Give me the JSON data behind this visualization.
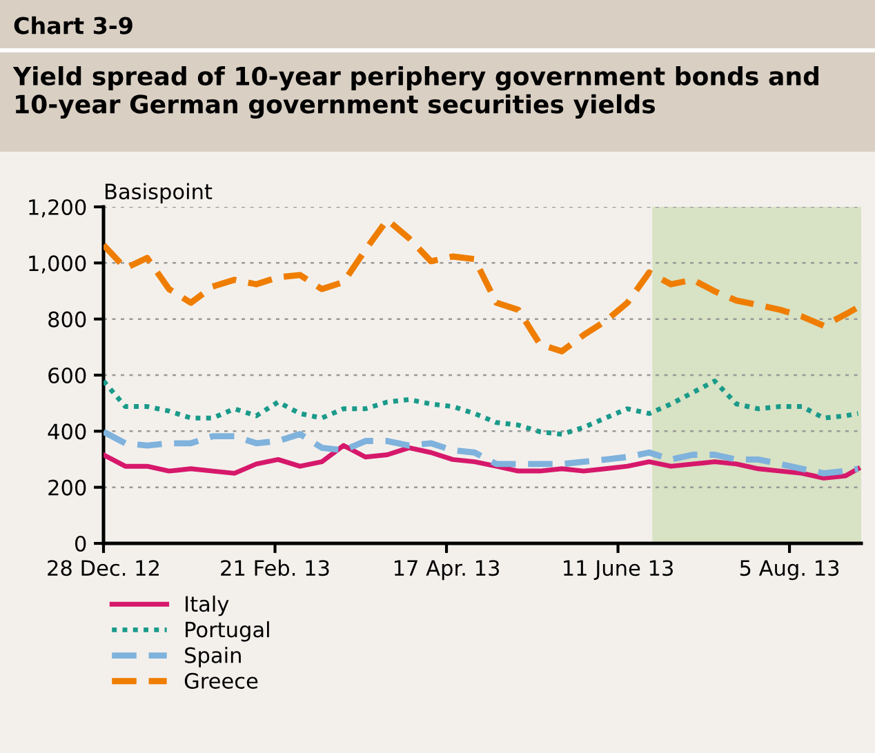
{
  "chart_data": {
    "type": "line",
    "title": "Yield spread of 10-year periphery government bonds and 10-year German government securities yields",
    "ylabel": "Basispoint",
    "annotations": [
      "Chart 3-9"
    ],
    "x": [
      "2012-12-28",
      "2013-01-04",
      "2013-01-11",
      "2013-01-18",
      "2013-01-25",
      "2013-02-01",
      "2013-02-08",
      "2013-02-15",
      "2013-02-22",
      "2013-03-01",
      "2013-03-08",
      "2013-03-15",
      "2013-03-22",
      "2013-03-29",
      "2013-04-05",
      "2013-04-12",
      "2013-04-19",
      "2013-04-26",
      "2013-05-03",
      "2013-05-10",
      "2013-05-17",
      "2013-05-24",
      "2013-05-31",
      "2013-06-07",
      "2013-06-14",
      "2013-06-21",
      "2013-06-28",
      "2013-07-05",
      "2013-07-12",
      "2013-07-19",
      "2013-07-26",
      "2013-08-02",
      "2013-08-09",
      "2013-08-16",
      "2013-08-23",
      "2013-08-27"
    ],
    "series": [
      {
        "name": "Italy",
        "color": "#d6186b",
        "line_style": "solid",
        "values": [
          316,
          275,
          275,
          258,
          266,
          258,
          250,
          283,
          299,
          275,
          291,
          349,
          308,
          316,
          341,
          324,
          299,
          291,
          275,
          258,
          258,
          266,
          258,
          266,
          275,
          291,
          275,
          283,
          291,
          283,
          266,
          258,
          250,
          233,
          241,
          266
        ]
      },
      {
        "name": "Portugal",
        "color": "#1a9a8a",
        "line_style": "dotted",
        "values": [
          579,
          488,
          488,
          472,
          447,
          447,
          480,
          455,
          504,
          463,
          447,
          480,
          480,
          504,
          513,
          497,
          488,
          463,
          431,
          422,
          398,
          389,
          414,
          447,
          480,
          463,
          497,
          538,
          579,
          497,
          480,
          488,
          488,
          447,
          455,
          463
        ]
      },
      {
        "name": "Spain",
        "color": "#7fb2dc",
        "line_style": "dashed",
        "values": [
          398,
          357,
          349,
          357,
          357,
          382,
          382,
          357,
          365,
          390,
          341,
          332,
          365,
          365,
          349,
          357,
          332,
          324,
          283,
          283,
          283,
          283,
          291,
          299,
          308,
          324,
          299,
          316,
          316,
          299,
          299,
          283,
          266,
          250,
          258,
          266
        ]
      },
      {
        "name": "Greece",
        "color": "#ef7d00",
        "line_style": "dashed",
        "values": [
          1064,
          981,
          1018,
          907,
          858,
          916,
          940,
          924,
          949,
          957,
          907,
          932,
          1047,
          1154,
          1088,
          1006,
          1023,
          1014,
          858,
          833,
          710,
          685,
          743,
          793,
          858,
          966,
          924,
          940,
          899,
          866,
          850,
          833,
          809,
          776,
          817,
          842
        ]
      }
    ],
    "xlim": [
      "2012-12-28",
      "2013-08-28"
    ],
    "xticks": [
      {
        "value": "2012-12-28",
        "label": "28 Dec. 12"
      },
      {
        "value": "2013-02-21",
        "label": "21 Feb. 13"
      },
      {
        "value": "2013-04-17",
        "label": "17 Apr. 13"
      },
      {
        "value": "2013-06-11",
        "label": "11 June 13"
      },
      {
        "value": "2013-08-05",
        "label": "5 Aug. 13"
      }
    ],
    "ylim": [
      0,
      1200
    ],
    "yticks": [
      0,
      {
        "value": 200,
        "label": "200"
      },
      {
        "value": 400,
        "label": "400"
      },
      {
        "value": 600,
        "label": "600"
      },
      {
        "value": 800,
        "label": "800"
      },
      {
        "value": 1000,
        "label": "1,000"
      },
      {
        "value": 1200,
        "label": "1,200"
      }
    ],
    "bands": [
      {
        "axis": "x",
        "from": "2013-06-22",
        "to": "2013-08-28",
        "color": "#d8e2c4"
      }
    ],
    "grid": "y",
    "legend": "bottom"
  }
}
